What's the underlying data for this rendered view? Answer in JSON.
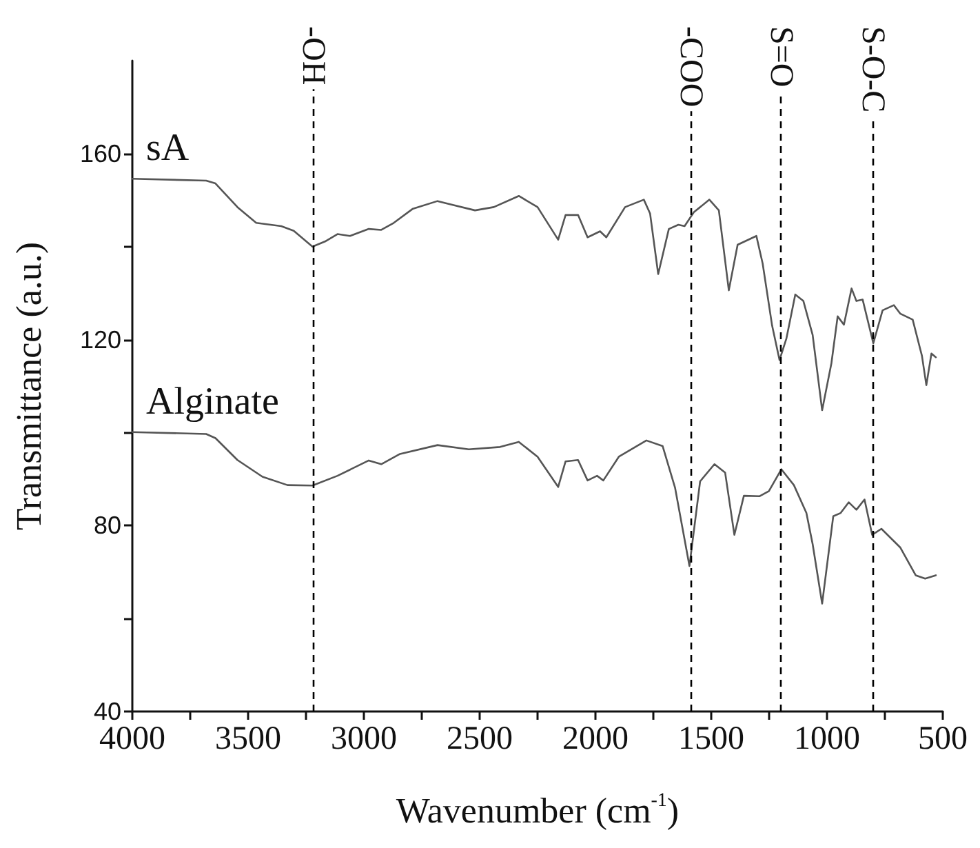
{
  "chart_data": {
    "type": "line",
    "xlabel": "Wavenumber (cm$^{-1}$)",
    "ylabel": "Transmittance (a.u.)",
    "xlim": [
      4000,
      500
    ],
    "xticks": [
      4000,
      {
        "value": 3750,
        "label": null
      },
      3500,
      {
        "value": 3250,
        "label": null
      },
      3000,
      {
        "value": 2750,
        "label": null
      },
      2500,
      {
        "value": 2250,
        "label": null
      },
      2000,
      {
        "value": 1750,
        "label": null
      },
      1500,
      {
        "value": 1250,
        "label": null
      },
      1000,
      {
        "value": 750,
        "label": null
      },
      500
    ],
    "ylim": [
      40,
      180
    ],
    "yticks": [
      40,
      {
        "value": 60,
        "label": null
      },
      80,
      {
        "value": 100,
        "label": null
      },
      120,
      {
        "value": 140,
        "label": null
      },
      160
    ],
    "grid": false,
    "legend": false,
    "marker": "none",
    "line_style": "solid",
    "series": [
      {
        "name": "sA",
        "color": "#555555",
        "x": [
          4000,
          3681,
          3641,
          3546,
          3465,
          3357,
          3303,
          3222,
          3168,
          3114,
          3060,
          2979,
          2925,
          2871,
          2790,
          2682,
          2628,
          2520,
          2439,
          2331,
          2250,
          2161,
          2129,
          2075,
          2034,
          1980,
          1953,
          1872,
          1791,
          1764,
          1729,
          1683,
          1642,
          1615,
          1575,
          1508,
          1467,
          1424,
          1386,
          1305,
          1278,
          1237,
          1205,
          1175,
          1137,
          1102,
          1062,
          1021,
          981,
          954,
          927,
          894,
          873,
          846,
          800,
          760,
          711,
          684,
          630,
          590,
          571,
          549,
          530
        ],
        "values": [
          154.6,
          154.2,
          153.6,
          148.5,
          145.1,
          144.4,
          143.4,
          140.0,
          141.1,
          142.7,
          142.3,
          143.8,
          143.6,
          145.1,
          148.1,
          149.8,
          149.1,
          147.8,
          148.5,
          150.9,
          148.5,
          141.5,
          146.8,
          146.8,
          142.0,
          143.3,
          142.0,
          148.5,
          150.1,
          147.1,
          134.1,
          143.8,
          144.7,
          144.4,
          147.4,
          150.1,
          147.8,
          130.6,
          140.4,
          142.3,
          136.4,
          123.0,
          115.6,
          120.3,
          129.7,
          128.3,
          121.0,
          104.8,
          114.9,
          125.0,
          123.2,
          131.0,
          128.3,
          128.6,
          119.2,
          126.3,
          127.4,
          125.6,
          124.3,
          116.5,
          110.2,
          117.0,
          116.2
        ]
      },
      {
        "name": "Alginate",
        "color": "#555555",
        "x": [
          4000,
          3681,
          3641,
          3546,
          3438,
          3330,
          3222,
          3114,
          2979,
          2925,
          2844,
          2682,
          2547,
          2412,
          2331,
          2250,
          2161,
          2129,
          2075,
          2034,
          1993,
          1966,
          1899,
          1780,
          1710,
          1656,
          1594,
          1548,
          1486,
          1440,
          1400,
          1359,
          1292,
          1251,
          1197,
          1143,
          1089,
          1062,
          1021,
          973,
          941,
          906,
          873,
          838,
          805,
          765,
          684,
          617,
          576,
          530
        ],
        "values": [
          100.1,
          99.7,
          98.8,
          94.1,
          90.5,
          88.7,
          88.6,
          90.7,
          94.0,
          93.2,
          95.4,
          97.3,
          96.4,
          96.9,
          98.0,
          94.8,
          88.3,
          93.8,
          94.1,
          89.7,
          90.7,
          89.7,
          94.8,
          98.3,
          97.1,
          88.1,
          71.3,
          89.5,
          93.2,
          91.4,
          78.0,
          86.4,
          86.3,
          87.4,
          92.1,
          88.7,
          82.7,
          76.0,
          63.2,
          82.0,
          82.7,
          85.0,
          83.4,
          85.6,
          78.0,
          79.3,
          75.3,
          69.3,
          68.6,
          69.3
        ]
      }
    ],
    "ref_lines": [
      {
        "axis": "x",
        "value": 3220,
        "label": "-OH",
        "color": "#000000",
        "line_style": "dashed"
      },
      {
        "axis": "x",
        "value": 1590,
        "label": "-COO",
        "color": "#000000",
        "line_style": "dashed"
      },
      {
        "axis": "x",
        "value": 1200,
        "label": "S=O",
        "color": "#000000",
        "line_style": "dashed"
      },
      {
        "axis": "x",
        "value": 805,
        "label": "S-O-C",
        "color": "#000000",
        "line_style": "dashed"
      }
    ]
  }
}
